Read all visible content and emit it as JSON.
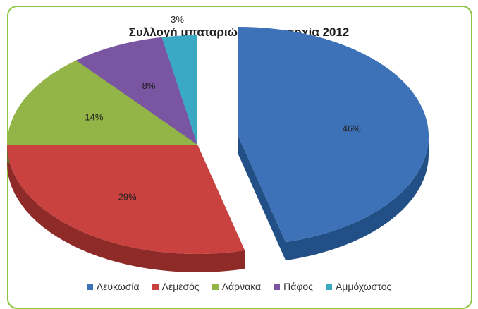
{
  "chart_data": {
    "type": "pie",
    "title": "Συλλογή μπαταριών ανά επαρχία 2012",
    "legend_position": "bottom",
    "exploded": true,
    "three_d": true,
    "slices": [
      {
        "name": "Λευκωσία",
        "value": 46,
        "label": "46%",
        "color": "#3d72b8",
        "side": "#224f86"
      },
      {
        "name": "Λεμεσός",
        "value": 29,
        "label": "29%",
        "color": "#c9423f",
        "side": "#8e2a28"
      },
      {
        "name": "Λάρνακα",
        "value": 14,
        "label": "14%",
        "color": "#93b447",
        "side": "#5a7327"
      },
      {
        "name": "Πάφος",
        "value": 8,
        "label": "8%",
        "color": "#7a56a2",
        "side": "#4d3470"
      },
      {
        "name": "Αμμόχωστος",
        "value": 3,
        "label": "3%",
        "color": "#3aa9c4",
        "side": "#1f7187"
      }
    ]
  }
}
